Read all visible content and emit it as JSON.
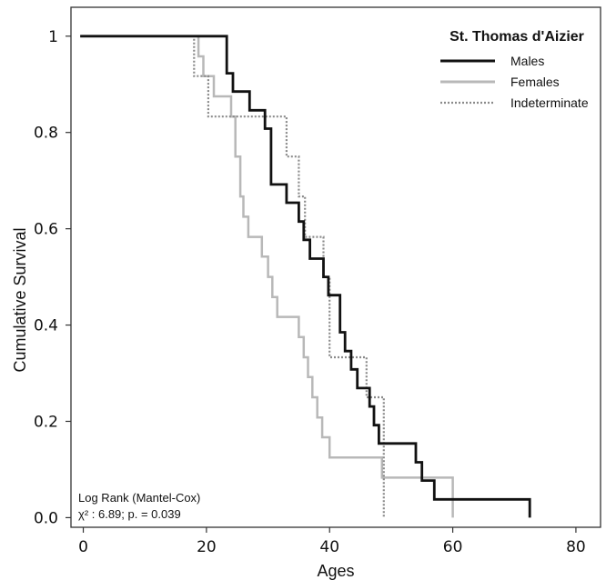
{
  "chart_data": {
    "type": "line",
    "step": true,
    "title": "",
    "xlabel": "Ages",
    "ylabel": "Cumulative Survival",
    "xlim": [
      -2,
      84
    ],
    "ylim": [
      -0.02,
      1.06
    ],
    "x_ticks": [
      0,
      20,
      40,
      60,
      80
    ],
    "y_ticks": [
      {
        "value": 1.0,
        "label": "1"
      },
      {
        "value": 0.8,
        "label": "0.8"
      },
      {
        "value": 0.6,
        "label": "0.6"
      },
      {
        "value": 0.4,
        "label": "0.4"
      },
      {
        "value": 0.2,
        "label": "0.2"
      },
      {
        "value": 0.0,
        "label": "0.0"
      }
    ],
    "grid": false,
    "legend": {
      "title": "St. Thomas d'Aizier",
      "position": "top-right"
    },
    "series": [
      {
        "name": "Males",
        "color": "#111111",
        "style": "solid",
        "x": [
          -0.5,
          22.5,
          23.3,
          24.3,
          27,
          29.5,
          30.5,
          33,
          35,
          35.8,
          36.8,
          39,
          39.8,
          41.7,
          42.5,
          43.5,
          44.5,
          46.5,
          47.2,
          48,
          54,
          55,
          57,
          60,
          72.5,
          72.5
        ],
        "y": [
          1.0,
          1.0,
          0.923,
          0.885,
          0.846,
          0.808,
          0.692,
          0.654,
          0.615,
          0.577,
          0.538,
          0.5,
          0.462,
          0.385,
          0.346,
          0.308,
          0.269,
          0.231,
          0.192,
          0.154,
          0.115,
          0.077,
          0.038,
          0.038,
          0.038,
          0.0
        ]
      },
      {
        "name": "Females",
        "color": "#b8b8b8",
        "style": "solid",
        "x": [
          -0.5,
          18,
          18.7,
          19.5,
          21.2,
          24,
          24.7,
          25.5,
          26,
          26.8,
          29,
          30,
          30.7,
          31.5,
          35,
          35.8,
          36.5,
          37.2,
          38,
          38.8,
          40,
          48.5,
          60,
          60
        ],
        "y": [
          1.0,
          1.0,
          0.958,
          0.917,
          0.875,
          0.833,
          0.75,
          0.667,
          0.625,
          0.583,
          0.542,
          0.5,
          0.458,
          0.417,
          0.375,
          0.333,
          0.292,
          0.25,
          0.208,
          0.167,
          0.125,
          0.083,
          0.042,
          0.0
        ]
      },
      {
        "name": "Indeterminate",
        "color": "#8a8a8a",
        "style": "dotted",
        "x": [
          -0.5,
          17.5,
          18,
          19.5,
          20.3,
          32,
          33,
          35,
          36,
          38,
          39,
          40,
          46,
          48.8,
          48.8
        ],
        "y": [
          1.0,
          1.0,
          0.917,
          0.917,
          0.833,
          0.833,
          0.75,
          0.667,
          0.583,
          0.583,
          0.5,
          0.333,
          0.25,
          0.25,
          0.0
        ]
      }
    ],
    "annotations": [
      {
        "text": "Log Rank (Mantel-Cox)"
      },
      {
        "text": "χ² : 6.89; p. = 0.039"
      }
    ]
  }
}
